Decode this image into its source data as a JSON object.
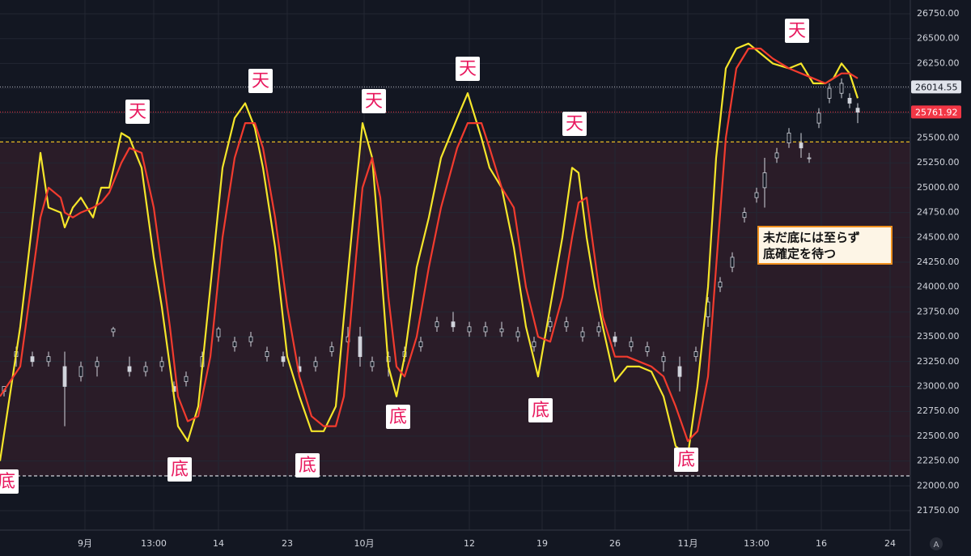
{
  "chart_data": {
    "type": "candlestick",
    "xlim": [
      0,
      225
    ],
    "ylim": [
      21750,
      26750
    ],
    "xticks": [
      {
        "value": 21,
        "label": "9月"
      },
      {
        "value": 38,
        "label": "13:00"
      },
      {
        "value": 54,
        "label": "14"
      },
      {
        "value": 71,
        "label": "23"
      },
      {
        "value": 90,
        "label": "10月"
      },
      {
        "value": 116,
        "label": "12"
      },
      {
        "value": 134,
        "label": "19"
      },
      {
        "value": 152,
        "label": "26"
      },
      {
        "value": 170,
        "label": "11月"
      },
      {
        "value": 187,
        "label": "13:00"
      },
      {
        "value": 203,
        "label": "16"
      },
      {
        "value": 220,
        "label": "24"
      }
    ],
    "yticks": [
      {
        "value": 21750,
        "label": "21750.00"
      },
      {
        "value": 22000,
        "label": "22000.00"
      },
      {
        "value": 22250,
        "label": "22250.00"
      },
      {
        "value": 22500,
        "label": "22500.00"
      },
      {
        "value": 22750,
        "label": "22750.00"
      },
      {
        "value": 23000,
        "label": "23000.00"
      },
      {
        "value": 23250,
        "label": "23250.00"
      },
      {
        "value": 23500,
        "label": "23500.00"
      },
      {
        "value": 23750,
        "label": "23750.00"
      },
      {
        "value": 24000,
        "label": "24000.00"
      },
      {
        "value": 24250,
        "label": "24250.00"
      },
      {
        "value": 24500,
        "label": "24500.00"
      },
      {
        "value": 24750,
        "label": "24750.00"
      },
      {
        "value": 25000,
        "label": "25000.00"
      },
      {
        "value": 25250,
        "label": "25250.00"
      },
      {
        "value": 25500,
        "label": "25500.00"
      },
      {
        "value": 25750,
        "label": "25750.00"
      },
      {
        "value": 26000,
        "label": "26000.00"
      },
      {
        "value": 26250,
        "label": "26250.00"
      },
      {
        "value": 26500,
        "label": "26500.00"
      },
      {
        "value": 26750,
        "label": "26750.00"
      }
    ],
    "grid": true,
    "candles": {
      "color": "#d1d4dc",
      "x": [
        1,
        4,
        8,
        12,
        16,
        20,
        24,
        28,
        32,
        36,
        40,
        43,
        46,
        50,
        54,
        58,
        62,
        66,
        70,
        74,
        78,
        82,
        86,
        89,
        92,
        96,
        100,
        104,
        108,
        112,
        116,
        120,
        124,
        128,
        132,
        136,
        140,
        144,
        148,
        152,
        156,
        160,
        164,
        168,
        172,
        175,
        178,
        181,
        184,
        187,
        189,
        192,
        195,
        198,
        200,
        202.4,
        205,
        208,
        210,
        212
      ],
      "open": [
        22950,
        23300,
        23300,
        23250,
        23200,
        23100,
        23200,
        23550,
        23200,
        23150,
        23200,
        23000,
        23050,
        23200,
        23500,
        23400,
        23450,
        23300,
        23300,
        23200,
        23200,
        23350,
        23450,
        23500,
        23200,
        23250,
        23300,
        23400,
        23600,
        23650,
        23550,
        23550,
        23550,
        23500,
        23400,
        23600,
        23600,
        23500,
        23550,
        23500,
        23400,
        23350,
        23250,
        23200,
        23300,
        23700,
        24000,
        24200,
        24700,
        24900,
        25000,
        25300,
        25450,
        25450,
        25300,
        25650,
        25900,
        25950,
        25900,
        25800
      ],
      "high": [
        23000,
        23400,
        23350,
        23350,
        23350,
        23250,
        23300,
        23600,
        23300,
        23250,
        23300,
        23050,
        23150,
        23350,
        23600,
        23500,
        23550,
        23400,
        23350,
        23300,
        23300,
        23450,
        23600,
        23600,
        23300,
        23350,
        23400,
        23500,
        23700,
        23750,
        23650,
        23650,
        23650,
        23600,
        23500,
        23700,
        23700,
        23600,
        23650,
        23550,
        23500,
        23450,
        23350,
        23300,
        23400,
        23900,
        24100,
        24350,
        24800,
        25000,
        25300,
        25400,
        25600,
        25550,
        25350,
        25800,
        26050,
        26100,
        25950,
        25850
      ],
      "low": [
        22900,
        23200,
        23200,
        23200,
        22600,
        23050,
        23100,
        23500,
        23100,
        23100,
        23150,
        22900,
        23000,
        23150,
        23450,
        23350,
        23400,
        23250,
        23200,
        23100,
        23150,
        23300,
        23400,
        23200,
        23150,
        23100,
        23250,
        23350,
        23550,
        23550,
        23500,
        23500,
        23500,
        23450,
        23350,
        23550,
        23550,
        23450,
        23500,
        23400,
        23350,
        23300,
        23150,
        22950,
        23250,
        23600,
        23950,
        24150,
        24650,
        24850,
        24800,
        25250,
        25400,
        25300,
        25250,
        25600,
        25850,
        25900,
        25800,
        25650
      ],
      "close": [
        23000,
        23350,
        23250,
        23300,
        23000,
        23200,
        23250,
        23580,
        23150,
        23200,
        23250,
        22950,
        23100,
        23300,
        23580,
        23450,
        23500,
        23350,
        23250,
        23150,
        23250,
        23400,
        23500,
        23300,
        23250,
        23300,
        23350,
        23450,
        23650,
        23600,
        23600,
        23600,
        23580,
        23550,
        23450,
        23650,
        23650,
        23550,
        23600,
        23450,
        23450,
        23400,
        23300,
        23100,
        23350,
        23850,
        24050,
        24300,
        24750,
        24950,
        25150,
        25350,
        25550,
        25400,
        25300,
        25750,
        26000,
        26050,
        25850,
        25760
      ]
    },
    "x": [
      0,
      5,
      10,
      12,
      15,
      16,
      18,
      20,
      23,
      25,
      27,
      30,
      32,
      35,
      38,
      40,
      42,
      44,
      46.4,
      49,
      52,
      55,
      58,
      60.6,
      63,
      65,
      68,
      71,
      74,
      77,
      80,
      83,
      85,
      88,
      89.6,
      92,
      94,
      96,
      98,
      100,
      103,
      106,
      109,
      113,
      115.6,
      119,
      121,
      124,
      127,
      130,
      133,
      136,
      139,
      141.4,
      143,
      145,
      147,
      149,
      152,
      155,
      158,
      161,
      164,
      167,
      170,
      172.4,
      175,
      177,
      179.4,
      182,
      185,
      188,
      191,
      195,
      198,
      201,
      204,
      206,
      208,
      210,
      212
    ],
    "series": [
      {
        "color": "#f5e62a",
        "values": [
          22250,
          23600,
          25350,
          24800,
          24750,
          24600,
          24800,
          24900,
          24700,
          25000,
          25000,
          25550,
          25500,
          25200,
          24300,
          23800,
          23200,
          22600,
          22450,
          22800,
          24000,
          25200,
          25700,
          25850,
          25600,
          25200,
          24400,
          23300,
          22900,
          22550,
          22550,
          22800,
          23700,
          25000,
          25650,
          25300,
          24300,
          23200,
          22900,
          23300,
          24200,
          24700,
          25300,
          25700,
          25950,
          25500,
          25200,
          25000,
          24400,
          23600,
          23100,
          23800,
          24500,
          25200,
          25150,
          24500,
          24000,
          23600,
          23050,
          23200,
          23200,
          23150,
          22900,
          22400,
          22300,
          23000,
          24000,
          25300,
          26200,
          26400,
          26450,
          26350,
          26250,
          26200,
          26250,
          26050,
          26050,
          26100,
          26250,
          26150,
          25900
        ]
      },
      {
        "color": "#f23b2e",
        "values": [
          22900,
          23200,
          24700,
          25000,
          24900,
          24750,
          24700,
          24750,
          24800,
          24850,
          24950,
          25250,
          25400,
          25350,
          24800,
          24200,
          23600,
          22900,
          22650,
          22700,
          23300,
          24500,
          25300,
          25650,
          25650,
          25400,
          24700,
          23800,
          23100,
          22700,
          22600,
          22600,
          22900,
          24300,
          25000,
          25300,
          24900,
          23900,
          23200,
          23100,
          23500,
          24200,
          24800,
          25400,
          25650,
          25650,
          25400,
          25000,
          24800,
          24000,
          23500,
          23450,
          23900,
          24500,
          24850,
          24900,
          24300,
          23700,
          23300,
          23300,
          23250,
          23200,
          23100,
          22800,
          22450,
          22550,
          23100,
          24200,
          25500,
          26200,
          26400,
          26400,
          26300,
          26200,
          26150,
          26100,
          26050,
          26100,
          26150,
          26150,
          26100
        ]
      }
    ],
    "price_lines": [
      {
        "value": 26014.55,
        "color": "#b2b5be"
      },
      {
        "value": 25761.92,
        "color": "#f23645"
      }
    ],
    "levels": [
      {
        "value": 25460,
        "color": "#e8b923"
      },
      {
        "value": 22100,
        "color": "#d1d4dc"
      }
    ],
    "annotations": [
      "天",
      "天",
      "天",
      "天",
      "天",
      "天",
      "底",
      "底",
      "底",
      "底",
      "底",
      "底"
    ],
    "note": [
      "未だ底には至らず",
      "底確定を待つ"
    ],
    "corner_icon": "A"
  }
}
